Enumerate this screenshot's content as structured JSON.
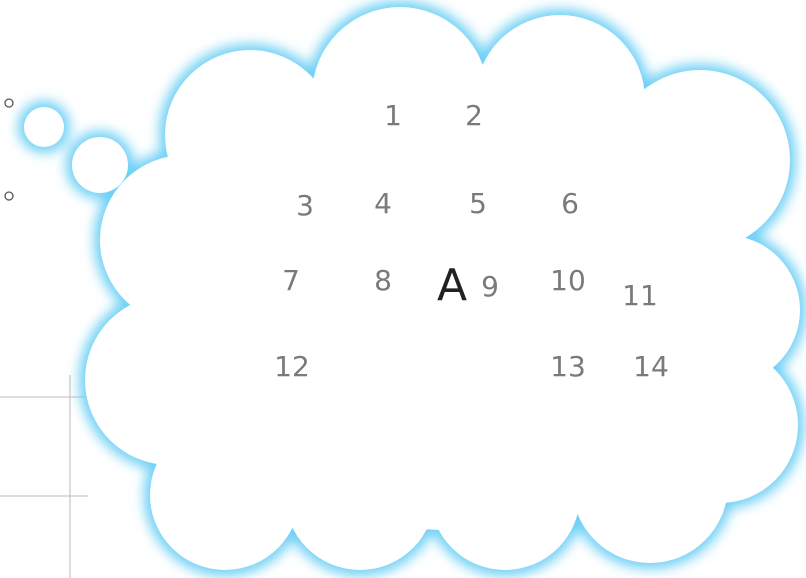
{
  "shape_label": "A",
  "cell_labels": [
    "1",
    "2",
    "3",
    "4",
    "5",
    "6",
    "7",
    "8",
    "9",
    "10",
    "11",
    "12",
    "13",
    "14"
  ]
}
